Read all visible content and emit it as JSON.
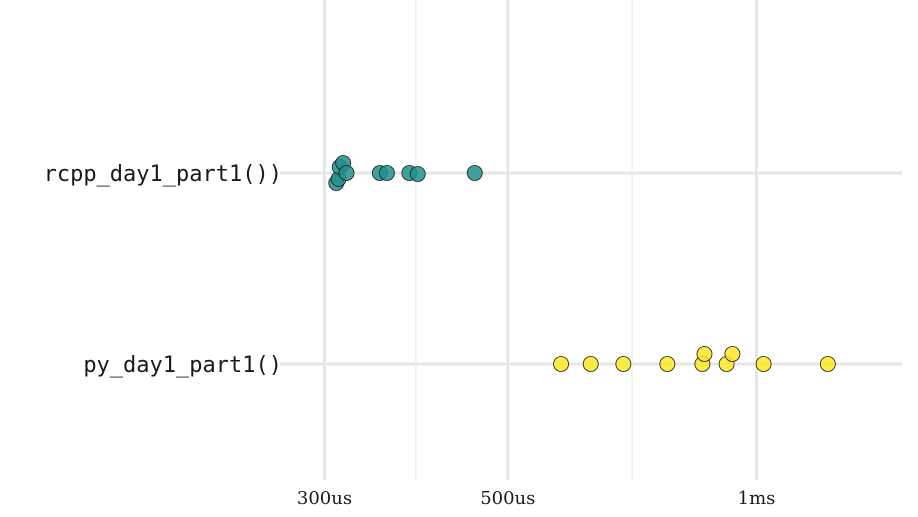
{
  "chart_data": {
    "type": "scatter",
    "x_scale": "log",
    "x_unit": "us",
    "xlim_us": [
      265,
      1500
    ],
    "x_ticks": [
      {
        "value_us": 300,
        "label": "300us"
      },
      {
        "value_us": 500,
        "label": "500us"
      },
      {
        "value_us": 1000,
        "label": "1ms"
      }
    ],
    "x_minor_gridlines_us": [
      387,
      707
    ],
    "grid": true,
    "series": [
      {
        "category": "",
        "color": "#440154",
        "points": [
          {
            "x_us": 318,
            "jitter": -5
          },
          {
            "x_us": 322,
            "jitter": -7
          }
        ]
      },
      {
        "category": "rcpp_day1_part1())",
        "color": "#21918C",
        "points": [
          {
            "x_us": 310,
            "jitter": 1
          },
          {
            "x_us": 312,
            "jitter": 0.6
          },
          {
            "x_us": 313,
            "jitter": -0.6
          },
          {
            "x_us": 316,
            "jitter": -1
          },
          {
            "x_us": 319,
            "jitter": 0
          },
          {
            "x_us": 350,
            "jitter": 0
          },
          {
            "x_us": 357,
            "jitter": 0
          },
          {
            "x_us": 380,
            "jitter": 0
          },
          {
            "x_us": 389,
            "jitter": 0.1
          },
          {
            "x_us": 456,
            "jitter": 0
          }
        ]
      },
      {
        "category": "py_day1_part1()",
        "color": "#FDE725",
        "points": [
          {
            "x_us": 580,
            "jitter": 0
          },
          {
            "x_us": 630,
            "jitter": 0
          },
          {
            "x_us": 690,
            "jitter": 0
          },
          {
            "x_us": 780,
            "jitter": 0
          },
          {
            "x_us": 860,
            "jitter": 0
          },
          {
            "x_us": 865,
            "jitter": -1
          },
          {
            "x_us": 920,
            "jitter": 0
          },
          {
            "x_us": 935,
            "jitter": -1
          },
          {
            "x_us": 1020,
            "jitter": 0
          },
          {
            "x_us": 1220,
            "jitter": 0
          }
        ]
      }
    ]
  }
}
